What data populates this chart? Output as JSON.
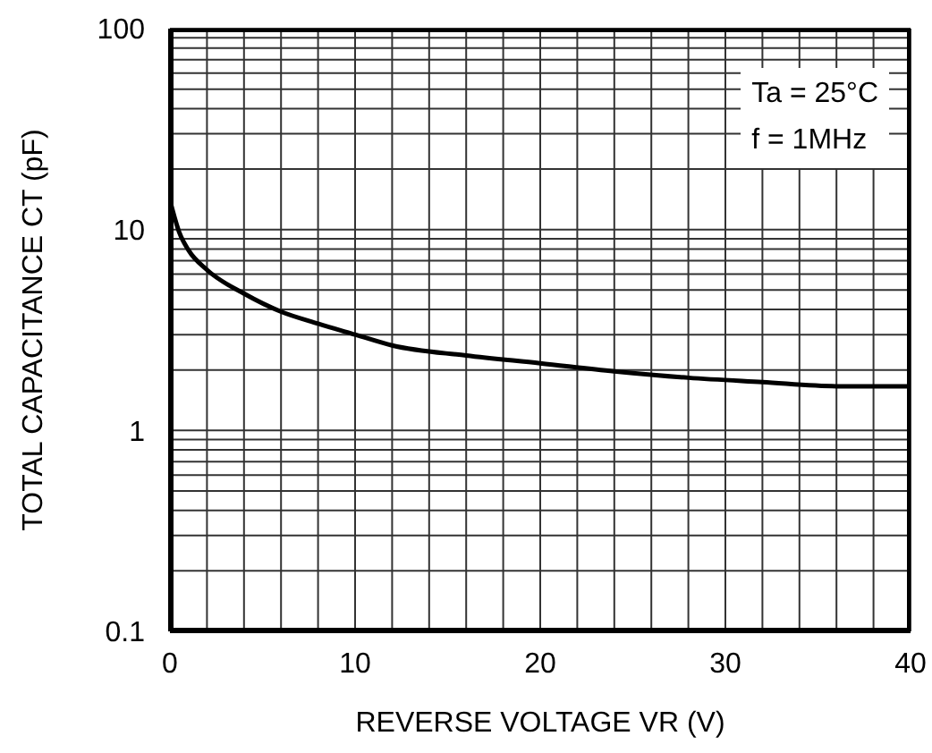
{
  "chart_data": {
    "type": "line",
    "xlabel": "REVERSE VOLTAGE VR (V)",
    "ylabel": "TOTAL CAPACITANCE  CT (pF)",
    "annotations": [
      "Ta = 25°C",
      "f = 1MHz"
    ],
    "x": [
      0,
      0.5,
      1,
      2,
      4,
      6,
      8,
      10,
      12,
      16,
      20,
      24,
      28,
      32,
      36,
      40
    ],
    "series": [
      {
        "color": "#000000",
        "values": [
          14,
          9.7,
          7.9,
          6.3,
          4.8,
          3.9,
          3.4,
          3.0,
          2.65,
          2.36,
          2.16,
          1.97,
          1.83,
          1.74,
          1.66,
          1.66
        ]
      }
    ],
    "xlim": [
      0,
      40
    ],
    "xticks": [
      0,
      {
        "value": 2,
        "label": null
      },
      {
        "value": 4,
        "label": null
      },
      {
        "value": 6,
        "label": null
      },
      {
        "value": 8,
        "label": null
      },
      10,
      {
        "value": 12,
        "label": null
      },
      {
        "value": 14,
        "label": null
      },
      {
        "value": 16,
        "label": null
      },
      {
        "value": 18,
        "label": null
      },
      20,
      {
        "value": 22,
        "label": null
      },
      {
        "value": 24,
        "label": null
      },
      {
        "value": 26,
        "label": null
      },
      {
        "value": 28,
        "label": null
      },
      30,
      {
        "value": 32,
        "label": null
      },
      {
        "value": 34,
        "label": null
      },
      {
        "value": 36,
        "label": null
      },
      {
        "value": 38,
        "label": null
      },
      40
    ],
    "ylim": [
      0.1,
      100
    ],
    "yticks": [
      0.1,
      {
        "value": 0.2,
        "label": null
      },
      {
        "value": 0.3,
        "label": null
      },
      {
        "value": 0.4,
        "label": null
      },
      {
        "value": 0.5,
        "label": null
      },
      {
        "value": 0.6,
        "label": null
      },
      {
        "value": 0.7,
        "label": null
      },
      {
        "value": 0.8,
        "label": null
      },
      {
        "value": 0.9,
        "label": null
      },
      1,
      {
        "value": 2,
        "label": null
      },
      {
        "value": 3,
        "label": null
      },
      {
        "value": 4,
        "label": null
      },
      {
        "value": 5,
        "label": null
      },
      {
        "value": 6,
        "label": null
      },
      {
        "value": 7,
        "label": null
      },
      {
        "value": 8,
        "label": null
      },
      {
        "value": 9,
        "label": null
      },
      10,
      {
        "value": 20,
        "label": null
      },
      {
        "value": 30,
        "label": null
      },
      {
        "value": 40,
        "label": null
      },
      {
        "value": 50,
        "label": null
      },
      {
        "value": 60,
        "label": null
      },
      {
        "value": 70,
        "label": null
      },
      {
        "value": 80,
        "label": null
      },
      {
        "value": 90,
        "label": null
      },
      100
    ],
    "log": true,
    "grid": true,
    "marker": "none",
    "line_style": "solid"
  }
}
